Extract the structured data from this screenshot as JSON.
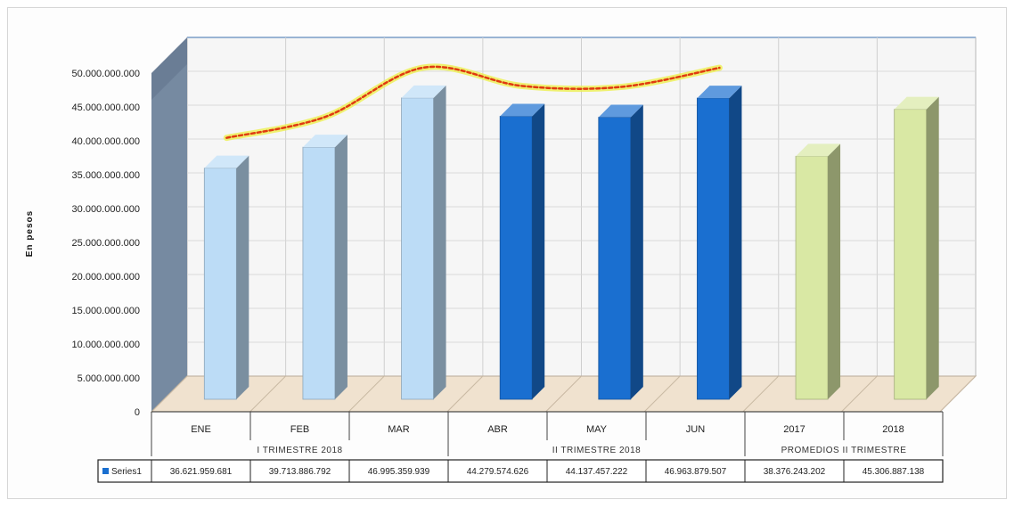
{
  "chart_data": {
    "type": "bar",
    "title": "",
    "ylabel": "En pesos",
    "xlabel": "",
    "ylim": [
      0,
      50000000000
    ],
    "yticks": [
      "0",
      "5.000.000.000",
      "10.000.000.000",
      "15.000.000.000",
      "20.000.000.000",
      "25.000.000.000",
      "30.000.000.000",
      "35.000.000.000",
      "40.000.000.000",
      "45.000.000.000",
      "50.000.000.000"
    ],
    "categories": [
      "ENE",
      "FEB",
      "MAR",
      "ABR",
      "MAY",
      "JUN",
      "2017",
      "2018"
    ],
    "groups": [
      {
        "label": "I TRIMESTRE 2018",
        "span": 3
      },
      {
        "label": "II TRIMESTRE 2018",
        "span": 3
      },
      {
        "label": "PROMEDIOS II TRIMESTRE",
        "span": 2
      }
    ],
    "series": [
      {
        "name": "Series1",
        "values": [
          36621959681,
          39713886792,
          46995359939,
          44279574626,
          44137457222,
          46963879507,
          38376243202,
          45306887138
        ],
        "value_labels": [
          "36.621.959.681",
          "39.713.886.792",
          "46.995.359.939",
          "44.279.574.626",
          "44.137.457.222",
          "46.963.879.507",
          "38.376.243.202",
          "45.306.887.138"
        ],
        "colors": [
          "#bcdcf6",
          "#bcdcf6",
          "#bcdcf6",
          "#1a6fd0",
          "#1a6fd0",
          "#1a6fd0",
          "#d9e8a4",
          "#d9e8a4"
        ]
      }
    ],
    "legend_position": "bottom-left",
    "grid": true,
    "colors": {
      "legend_swatch": "#1a6fd0",
      "trend_line": "#e03a10",
      "trend_glow": "#eef050"
    }
  }
}
